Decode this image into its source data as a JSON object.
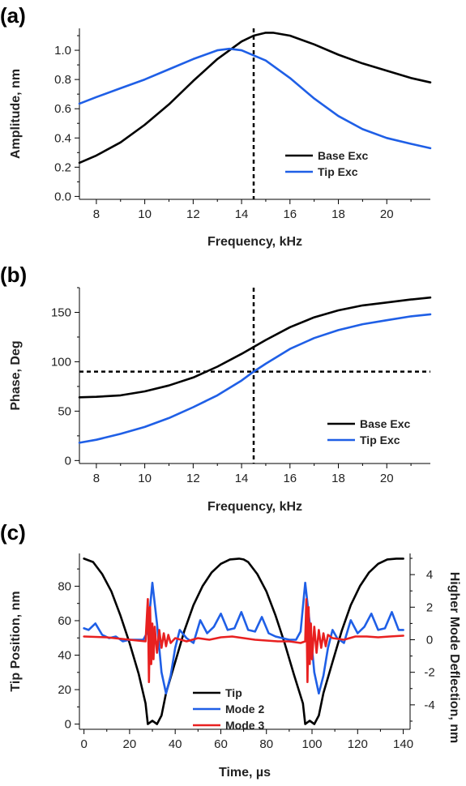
{
  "chart_data": [
    {
      "panel_label": "(a)",
      "type": "line",
      "xlabel": "Frequency, kHz",
      "ylabel": "Amplitude, nm",
      "xlim": [
        7.3,
        21.8
      ],
      "ylim": [
        -0.02,
        1.15
      ],
      "xticks": [
        8,
        10,
        12,
        14,
        16,
        18,
        20
      ],
      "yticks": [
        0.0,
        0.2,
        0.4,
        0.6,
        0.8,
        1.0
      ],
      "ytick_labels": [
        "0.0",
        "0.2",
        "0.4",
        "0.6",
        "0.8",
        "1.0"
      ],
      "vlines": [
        14.5
      ],
      "hlines": [],
      "legend": {
        "position": "bottom-right"
      },
      "series": [
        {
          "name": "Base Exc",
          "color": "#000000",
          "x": [
            7.3,
            8,
            9,
            10,
            11,
            12,
            13,
            14,
            14.5,
            15,
            15.3,
            16,
            17,
            18,
            19,
            20,
            21,
            21.8
          ],
          "y": [
            0.23,
            0.28,
            0.37,
            0.49,
            0.63,
            0.79,
            0.94,
            1.06,
            1.1,
            1.12,
            1.12,
            1.1,
            1.04,
            0.97,
            0.91,
            0.86,
            0.81,
            0.78
          ]
        },
        {
          "name": "Tip Exc",
          "color": "#1f5fe6",
          "x": [
            7.3,
            8,
            9,
            10,
            11,
            12,
            13,
            13.5,
            14,
            15,
            16,
            17,
            18,
            19,
            20,
            21,
            21.8
          ],
          "y": [
            0.635,
            0.68,
            0.74,
            0.8,
            0.87,
            0.94,
            1.0,
            1.01,
            1.0,
            0.93,
            0.81,
            0.67,
            0.55,
            0.46,
            0.4,
            0.36,
            0.33
          ]
        }
      ]
    },
    {
      "panel_label": "(b)",
      "type": "line",
      "xlabel": "Frequency, kHz",
      "ylabel": "Phase, Deg",
      "xlim": [
        7.3,
        21.8
      ],
      "ylim": [
        -3,
        175
      ],
      "xticks": [
        8,
        10,
        12,
        14,
        16,
        18,
        20
      ],
      "yticks": [
        0,
        50,
        100,
        150
      ],
      "ytick_labels": [
        "0",
        "50",
        "100",
        "150"
      ],
      "vlines": [
        14.5
      ],
      "hlines": [
        90
      ],
      "legend": {
        "position": "bottom-right"
      },
      "series": [
        {
          "name": "Base Exc",
          "color": "#000000",
          "x": [
            7.3,
            8,
            9,
            10,
            11,
            12,
            13,
            14,
            15,
            16,
            17,
            18,
            19,
            20,
            21,
            21.8
          ],
          "y": [
            64,
            64.5,
            66,
            70,
            76,
            84,
            95,
            108,
            122,
            135,
            145,
            152,
            157,
            160,
            163,
            165
          ]
        },
        {
          "name": "Tip Exc",
          "color": "#1f5fe6",
          "x": [
            7.3,
            8,
            9,
            10,
            11,
            12,
            13,
            14,
            14.5,
            15,
            16,
            17,
            18,
            19,
            20,
            21,
            21.8
          ],
          "y": [
            18,
            21,
            27,
            34,
            43,
            54,
            66,
            81,
            90,
            98,
            113,
            124,
            132,
            138,
            142,
            146,
            148
          ]
        }
      ]
    },
    {
      "panel_label": "(c)",
      "type": "line",
      "xlabel": "Time, µs",
      "ylabel": "Tip Position, nm",
      "ylabel_right": "Higher Mode Deflection, nm",
      "xlim": [
        -2,
        143
      ],
      "ylim": [
        -3,
        99
      ],
      "ylim_right": [
        -5.5,
        5.3
      ],
      "xticks": [
        0,
        20,
        40,
        60,
        80,
        100,
        120,
        140
      ],
      "yticks": [
        0,
        20,
        40,
        60,
        80
      ],
      "yticks_right": [
        -4,
        -2,
        0,
        2,
        4
      ],
      "legend": {
        "position": "bottom-center"
      },
      "series": [
        {
          "name": "Tip",
          "color": "#000000",
          "axis": "left",
          "x": [
            0,
            4,
            8,
            12,
            16,
            20,
            24,
            27,
            28,
            30,
            32,
            34,
            36,
            40,
            44,
            48,
            52,
            56,
            60,
            64,
            68,
            70,
            72,
            76,
            80,
            84,
            88,
            92,
            96,
            97,
            99,
            101,
            103,
            105,
            109,
            113,
            117,
            121,
            125,
            129,
            133,
            137,
            140
          ],
          "y": [
            96,
            94,
            87,
            77,
            63,
            47,
            29,
            12,
            0,
            2,
            0,
            5,
            18,
            36,
            54,
            69,
            80,
            88,
            93,
            95.5,
            96,
            95.5,
            94,
            87,
            77,
            63,
            47,
            29,
            12,
            0,
            2,
            0,
            5,
            18,
            36,
            54,
            69,
            80,
            88,
            93,
            95.5,
            96,
            96
          ]
        },
        {
          "name": "Mode 2",
          "color": "#1f5fe6",
          "axis": "right",
          "x": [
            0,
            2,
            5,
            8,
            11,
            14,
            17,
            20,
            23,
            26,
            28,
            30,
            32,
            34,
            36,
            38,
            40,
            42,
            45,
            48,
            51,
            54,
            57,
            60,
            63,
            66,
            69,
            72,
            75,
            78,
            81,
            84,
            87,
            90,
            93,
            95,
            97,
            99,
            101,
            103,
            105,
            107,
            109,
            111,
            114,
            117,
            120,
            123,
            126,
            129,
            132,
            135,
            138,
            140
          ],
          "y": [
            0.7,
            0.6,
            1.0,
            0.3,
            0.1,
            0.2,
            -0.1,
            0.0,
            0.0,
            0.0,
            0.5,
            3.5,
            1.0,
            -2.0,
            -3.3,
            -2.2,
            -0.5,
            0.6,
            0.1,
            -0.2,
            1.2,
            0.4,
            0.8,
            1.6,
            0.6,
            0.7,
            1.7,
            0.6,
            0.5,
            1.4,
            0.4,
            0.2,
            0.1,
            0.0,
            0.0,
            0.5,
            3.5,
            1.0,
            -2.0,
            -3.3,
            -2.2,
            -0.5,
            0.6,
            0.1,
            -0.2,
            1.2,
            0.4,
            0.8,
            1.6,
            0.6,
            0.7,
            1.7,
            0.6,
            0.6
          ]
        },
        {
          "name": "Mode 3",
          "color": "#e82020",
          "axis": "right",
          "x": [
            0,
            10,
            20,
            27,
            28,
            28.5,
            29,
            29.5,
            30,
            30.5,
            31,
            32,
            33,
            34,
            35,
            36,
            37,
            38,
            40,
            45,
            50,
            55,
            60,
            65,
            70,
            75,
            80,
            85,
            90,
            95,
            97,
            97.5,
            98,
            98.5,
            99,
            99.5,
            100,
            101,
            102,
            103,
            104,
            105,
            106,
            107,
            109,
            114,
            119,
            124,
            129,
            134,
            140
          ],
          "y": [
            0.2,
            0.15,
            0.0,
            -0.1,
            2.5,
            -2.6,
            2.0,
            -1.5,
            1.0,
            -1.2,
            0.8,
            -0.8,
            0.6,
            -0.5,
            0.4,
            -0.4,
            0.3,
            -0.2,
            0.1,
            -0.1,
            0.1,
            0.0,
            0.15,
            0.2,
            0.1,
            0.0,
            -0.05,
            -0.1,
            -0.1,
            -0.2,
            -0.1,
            2.5,
            -2.6,
            2.0,
            -1.5,
            1.0,
            -1.2,
            0.8,
            -0.8,
            0.6,
            -0.5,
            0.4,
            -0.4,
            0.3,
            0.1,
            0.0,
            0.2,
            0.2,
            0.15,
            0.2,
            0.25
          ]
        }
      ]
    }
  ]
}
